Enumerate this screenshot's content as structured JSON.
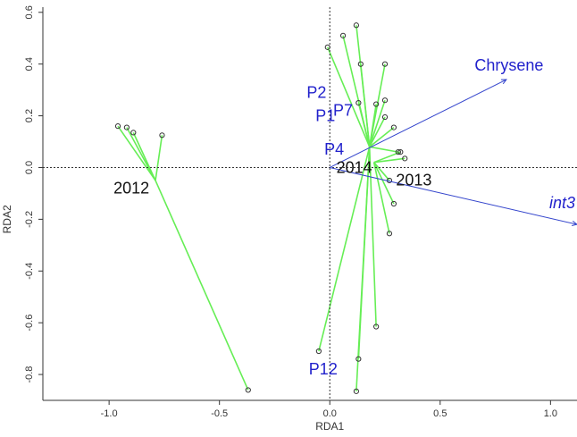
{
  "chart_data": {
    "type": "scatter",
    "title": "",
    "xlabel": "RDA1",
    "ylabel": "RDA2",
    "xlim": [
      -1.3,
      1.12
    ],
    "ylim": [
      -0.9,
      0.62
    ],
    "x_ticks": [
      "-1.0",
      "-0.5",
      "0.0",
      "0.5",
      "1.0"
    ],
    "x_tick_values": [
      -1.0,
      -0.5,
      0.0,
      0.5,
      1.0
    ],
    "y_ticks": [
      "-0.8",
      "-0.6",
      "-0.4",
      "-0.2",
      "0.0",
      "0.2",
      "0.4",
      "0.6"
    ],
    "y_tick_values": [
      -0.8,
      -0.6,
      -0.4,
      -0.2,
      0.0,
      0.2,
      0.4,
      0.6
    ],
    "zero_lines": true,
    "colors": {
      "spider": "#66ee55",
      "arrow": "#3344cc",
      "site_label": "#2222cc",
      "point": "#333333"
    },
    "groups": [
      {
        "name": "2012",
        "centroid": [
          -0.79,
          -0.05
        ],
        "points": [
          [
            -0.96,
            0.16
          ],
          [
            -0.92,
            0.155
          ],
          [
            -0.89,
            0.135
          ],
          [
            -0.76,
            0.125
          ],
          [
            -0.37,
            -0.86
          ]
        ]
      },
      {
        "name": "2014",
        "centroid": [
          0.18,
          0.08
        ],
        "points": [
          [
            -0.01,
            0.465
          ],
          [
            0.06,
            0.51
          ],
          [
            0.12,
            0.55
          ],
          [
            0.14,
            0.4
          ],
          [
            0.25,
            0.4
          ],
          [
            0.13,
            0.25
          ],
          [
            0.21,
            0.245
          ],
          [
            0.25,
            0.26
          ],
          [
            0.25,
            0.195
          ],
          [
            0.29,
            0.155
          ],
          [
            0.31,
            0.06
          ],
          [
            0.13,
            -0.74
          ],
          [
            0.12,
            -0.865
          ],
          [
            -0.05,
            -0.71
          ],
          [
            0.21,
            -0.615
          ]
        ]
      },
      {
        "name": "2013",
        "centroid": [
          0.2,
          0.02
        ],
        "points": [
          [
            0.32,
            0.06
          ],
          [
            0.34,
            0.035
          ],
          [
            0.27,
            -0.05
          ],
          [
            0.29,
            -0.14
          ],
          [
            0.27,
            -0.255
          ]
        ]
      }
    ],
    "vectors": [
      {
        "name": "Chrysene",
        "x": 0.8,
        "y": 0.34,
        "italic": false
      },
      {
        "name": "int3",
        "x": 1.12,
        "y": -0.22,
        "italic": true
      }
    ],
    "site_labels": [
      {
        "text": "P2",
        "x": -0.06,
        "y": 0.27
      },
      {
        "text": "P1",
        "x": -0.02,
        "y": 0.18
      },
      {
        "text": "P7",
        "x": 0.06,
        "y": 0.2
      },
      {
        "text": "P4",
        "x": 0.02,
        "y": 0.05
      },
      {
        "text": "P12",
        "x": -0.03,
        "y": -0.8
      }
    ],
    "group_labels": [
      {
        "text": "2012",
        "x": -0.98,
        "y": -0.1
      },
      {
        "text": "2014",
        "x": 0.03,
        "y": -0.02
      },
      {
        "text": "2013",
        "x": 0.3,
        "y": -0.07
      }
    ]
  }
}
